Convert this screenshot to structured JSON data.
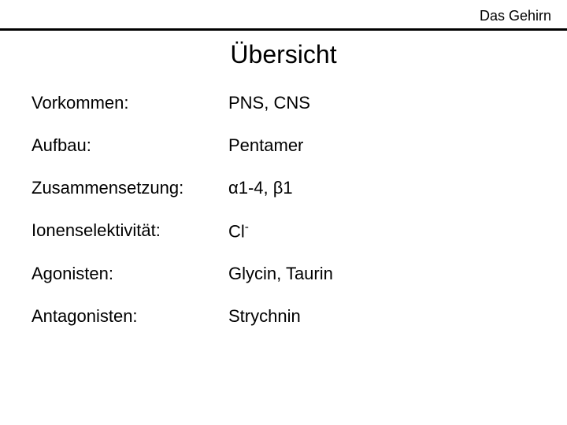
{
  "header": "Das Gehirn",
  "title": "Übersicht",
  "rows": [
    {
      "label": "Vorkommen:",
      "value": "PNS, CNS"
    },
    {
      "label": "Aufbau:",
      "value": "Pentamer"
    },
    {
      "label": "Zusammensetzung:",
      "value": "α1-4, β1"
    },
    {
      "label": "Ionenselektivität:",
      "value_html": "Cl<sup>-</sup>",
      "value": "Cl-"
    },
    {
      "label": "Agonisten:",
      "value": "Glycin, Taurin"
    },
    {
      "label": "Antagonisten:",
      "value": "Strychnin"
    }
  ]
}
